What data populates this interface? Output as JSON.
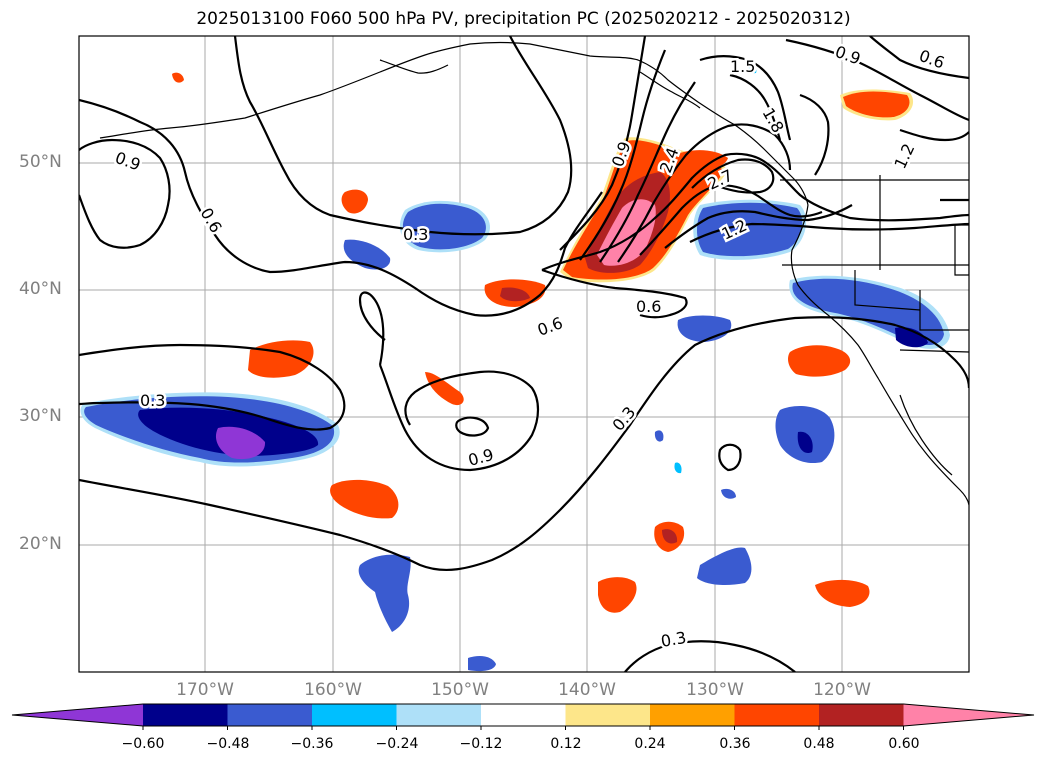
{
  "title": "2025013100 F060 500 hPa PV, precipitation PC (2025020212 - 2025020312)",
  "lat_labels": [
    "50°N",
    "40°N",
    "30°N",
    "20°N"
  ],
  "lon_labels": [
    "170°W",
    "160°W",
    "150°W",
    "140°W",
    "130°W",
    "120°W"
  ],
  "contour_labels": [
    "0.9",
    "0.6",
    "0.3",
    "0.3",
    "0.9",
    "0.6",
    "0.6",
    "0.3",
    "0.3",
    "0.9",
    "2.4",
    "2.7",
    "1.2",
    "1.5",
    "1.8",
    "0.9",
    "0.6",
    "1.2"
  ],
  "colorbar": {
    "colors": [
      "#8f36d6",
      "#00008b",
      "#3a5bd0",
      "#00bfff",
      "#aee0f8",
      "#ffffff",
      "#fde68a",
      "#ffa000",
      "#ff4500",
      "#b22222",
      "#ff82a8"
    ],
    "tick_labels": [
      "−0.60",
      "−0.48",
      "−0.36",
      "−0.24",
      "−0.12",
      "0.12",
      "0.24",
      "0.36",
      "0.48",
      "0.60"
    ]
  }
}
